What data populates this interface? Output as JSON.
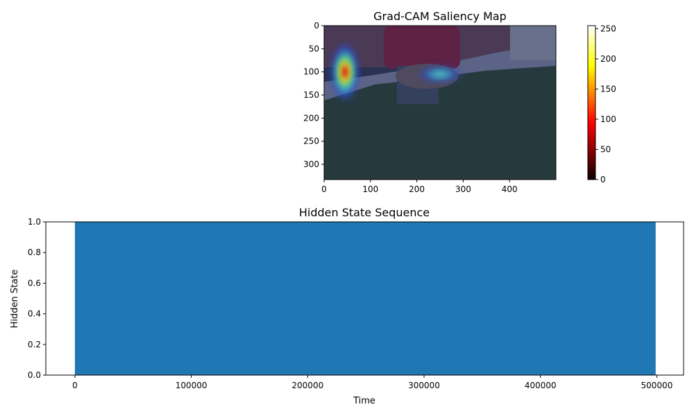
{
  "chart_data": [
    {
      "type": "heatmap",
      "title": "Grad-CAM Saliency Map",
      "image_width": 500,
      "image_height": 333,
      "x_ticks": [
        0,
        100,
        200,
        300,
        400
      ],
      "y_ticks": [
        0,
        50,
        100,
        150,
        200,
        250,
        300
      ],
      "colorbar": {
        "ticks": [
          0,
          50,
          100,
          150,
          200,
          250
        ],
        "range": [
          0,
          255
        ],
        "colormap": "hot"
      },
      "hotspots": [
        {
          "x": 45,
          "y": 100,
          "intensity": 1.0,
          "spread_x": 30,
          "spread_y": 60
        },
        {
          "x": 250,
          "y": 105,
          "intensity": 0.5,
          "spread_x": 45,
          "spread_y": 18
        }
      ]
    },
    {
      "type": "area",
      "title": "Hidden State Sequence",
      "xlabel": "Time",
      "ylabel": "Hidden State",
      "x_ticks": [
        0,
        100000,
        200000,
        300000,
        400000,
        500000
      ],
      "y_ticks": [
        "0.0",
        "0.2",
        "0.4",
        "0.6",
        "0.8",
        "1.0"
      ],
      "xlim": [
        -25000,
        523000
      ],
      "ylim": [
        0,
        1
      ],
      "series": [
        {
          "x_start": 0,
          "x_end": 499000,
          "value": 1.0,
          "color": "#1f77b4"
        }
      ],
      "grid": false
    }
  ]
}
